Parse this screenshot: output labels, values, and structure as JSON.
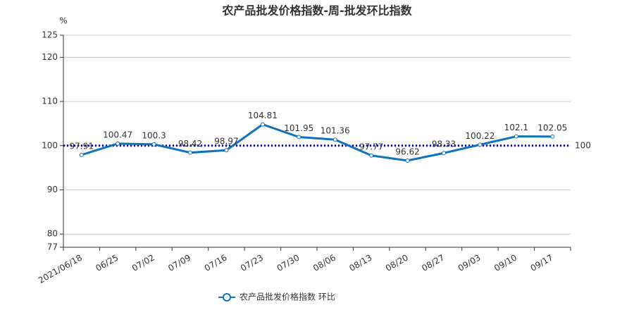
{
  "chart_data": {
    "type": "line",
    "title": "农产品批发价格指数-周-批发环比指数",
    "y_label": "%",
    "categories": [
      "2021/06/18",
      "06/25",
      "07/02",
      "07/09",
      "07/16",
      "07/23",
      "07/30",
      "08/06",
      "08/13",
      "08/20",
      "08/27",
      "09/03",
      "09/10",
      "09/17"
    ],
    "series": [
      {
        "name": "农产品批发价格指数  环比",
        "color": "#0f72bd",
        "values": [
          97.91,
          100.47,
          100.3,
          98.42,
          98.97,
          104.81,
          101.95,
          101.36,
          97.77,
          96.62,
          98.33,
          100.22,
          102.1,
          102.05
        ]
      }
    ],
    "ylim": [
      77,
      125
    ],
    "yticks": [
      77,
      80,
      90,
      100,
      110,
      120,
      125
    ],
    "grid": true,
    "mark_line": 100,
    "mark_line_color": "#0000cc",
    "legend": "bottom"
  }
}
